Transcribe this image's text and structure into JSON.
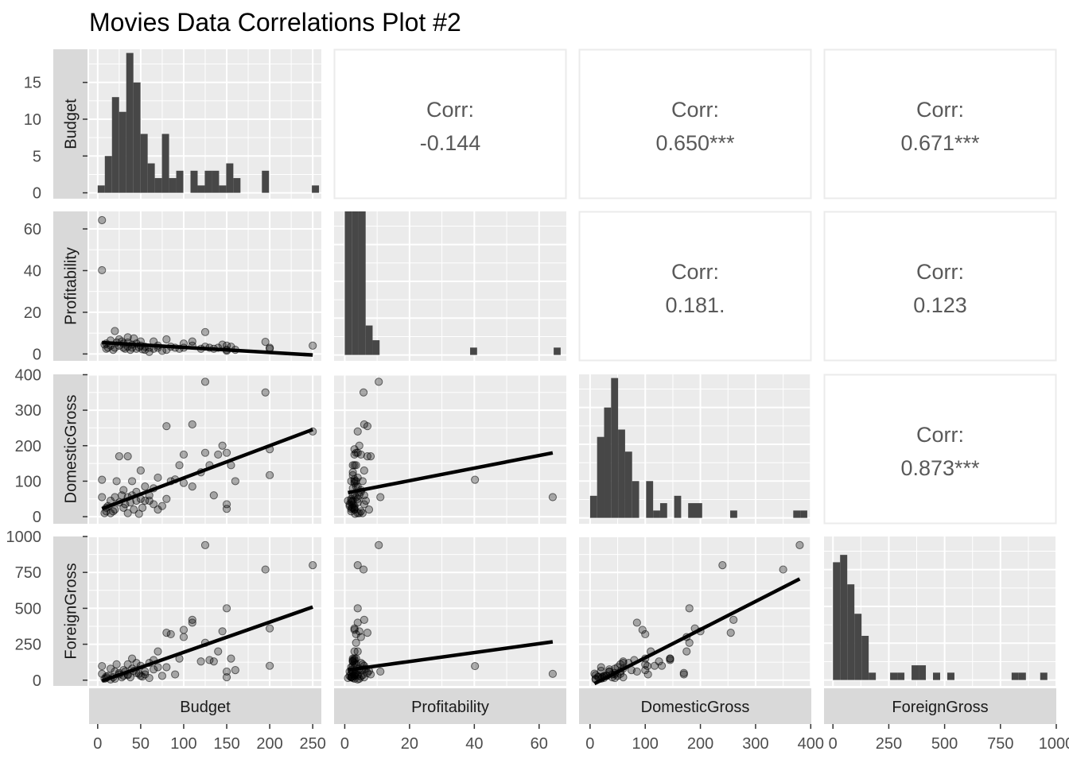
{
  "title": "Movies Data Correlations Plot #2",
  "colors": {
    "panel_bg": "#ebebeb",
    "grid_major": "#ffffff",
    "strip_bg": "#d9d9d9",
    "bars": "#474747",
    "points": "#000000",
    "fit_line": "#000000",
    "corr_text": "#595959",
    "corr_border": "#ebebeb"
  },
  "chart_data": {
    "type": "scatter",
    "variables": [
      "Budget",
      "Profitability",
      "DomesticGross",
      "ForeignGross"
    ],
    "axes": {
      "Budget": {
        "range": [
          -10,
          260
        ],
        "ticks": [
          0,
          50,
          100,
          150,
          200,
          250
        ]
      },
      "Profitability": {
        "range": [
          -3.3,
          68.4
        ],
        "ticks": [
          0,
          20,
          40,
          60
        ]
      },
      "DomesticGross": {
        "range": [
          -20,
          401
        ],
        "ticks": [
          0,
          100,
          200,
          300,
          400
        ]
      },
      "ForeignGross": {
        "range": [
          -40,
          1000
        ],
        "ticks": [
          0,
          250,
          500,
          750,
          1000
        ]
      }
    },
    "count_axis": {
      "range": [
        -0.8,
        19.5
      ],
      "ticks": [
        0,
        5,
        10,
        15
      ]
    },
    "correlations": [
      {
        "label": "Corr:",
        "value": "-0.144",
        "row": "Budget",
        "col": "Profitability"
      },
      {
        "label": "Corr:",
        "value": "0.650***",
        "row": "Budget",
        "col": "DomesticGross"
      },
      {
        "label": "Corr:",
        "value": "0.671***",
        "row": "Budget",
        "col": "ForeignGross"
      },
      {
        "label": "Corr:",
        "value": "0.181.",
        "row": "Profitability",
        "col": "DomesticGross"
      },
      {
        "label": "Corr:",
        "value": "0.123",
        "row": "Profitability",
        "col": "ForeignGross"
      },
      {
        "label": "Corr:",
        "value": "0.873***",
        "row": "DomesticGross",
        "col": "ForeignGross"
      }
    ],
    "histograms": {
      "Budget": {
        "start": 0,
        "binwidth": 8.3,
        "counts": [
          1,
          5,
          13,
          11,
          19,
          15,
          8,
          4,
          2,
          8,
          2,
          3,
          0,
          3,
          1,
          3,
          3,
          1,
          4,
          2,
          0,
          0,
          0,
          3,
          0,
          0,
          0,
          0,
          0,
          0,
          1
        ]
      },
      "Profitability": {
        "start": 0,
        "binwidth": 2.15,
        "counts": [
          30,
          65,
          27,
          4,
          2,
          0,
          0,
          0,
          0,
          0,
          0,
          0,
          0,
          0,
          0,
          0,
          0,
          0,
          1,
          0,
          0,
          0,
          0,
          0,
          0,
          0,
          0,
          0,
          0,
          0,
          1
        ]
      },
      "DomesticGross": {
        "start": 0,
        "binwidth": 12.7,
        "counts": [
          3,
          11,
          15,
          19,
          12,
          9,
          5,
          0,
          5,
          1,
          2,
          0,
          3,
          0,
          2,
          2,
          0,
          0,
          0,
          0,
          1,
          0,
          0,
          0,
          0,
          0,
          0,
          0,
          0,
          1,
          1
        ]
      },
      "ForeignGross": {
        "start": 0,
        "binwidth": 32,
        "counts": [
          16,
          17,
          13,
          9,
          6,
          1,
          0,
          0,
          1,
          1,
          0,
          2,
          2,
          0,
          1,
          0,
          1,
          0,
          0,
          0,
          0,
          0,
          0,
          0,
          0,
          1,
          1,
          0,
          0,
          1
        ]
      }
    },
    "fit_lines": {
      "Budget|Profitability": [
        5.6,
        -0.0244
      ],
      "Budget|DomesticGross": [
        18,
        0.91
      ],
      "Budget|ForeignGross": [
        -16,
        2.1
      ],
      "Profitability|DomesticGross": [
        66,
        1.77
      ],
      "Profitability|ForeignGross": [
        68,
        3.1
      ],
      "DomesticGross|ForeignGross": [
        -40,
        1.96
      ]
    },
    "movies": [
      {
        "b": 5,
        "p": 64.2,
        "d": 55,
        "f": 44
      },
      {
        "b": 5,
        "p": 40.2,
        "d": 104,
        "f": 98
      },
      {
        "b": 250,
        "p": 4,
        "d": 240,
        "f": 800
      },
      {
        "b": 200,
        "p": 3,
        "d": 190,
        "f": 360
      },
      {
        "b": 200,
        "p": 2.5,
        "d": 117,
        "f": 100
      },
      {
        "b": 195,
        "p": 5.8,
        "d": 350,
        "f": 770
      },
      {
        "b": 160,
        "p": 2,
        "d": 100,
        "f": 70
      },
      {
        "b": 155,
        "p": 3.5,
        "d": 145,
        "f": 150
      },
      {
        "b": 150,
        "p": 4,
        "d": 180,
        "f": 500
      },
      {
        "b": 150,
        "p": 1.5,
        "d": 35,
        "f": 60
      },
      {
        "b": 150,
        "p": 2,
        "d": 22,
        "f": 20
      },
      {
        "b": 145,
        "p": 4.5,
        "d": 200,
        "f": 340
      },
      {
        "b": 140,
        "p": 3,
        "d": 175,
        "f": 200
      },
      {
        "b": 135,
        "p": 2.5,
        "d": 60,
        "f": 130
      },
      {
        "b": 130,
        "p": 3,
        "d": 145,
        "f": 140
      },
      {
        "b": 125,
        "p": 10.5,
        "d": 380,
        "f": 940
      },
      {
        "b": 125,
        "p": 3.5,
        "d": 180,
        "f": 260
      },
      {
        "b": 120,
        "p": 2.5,
        "d": 125,
        "f": 130
      },
      {
        "b": 110,
        "p": 6,
        "d": 260,
        "f": 420
      },
      {
        "b": 110,
        "p": 4,
        "d": 85,
        "f": 400
      },
      {
        "b": 100,
        "p": 5,
        "d": 175,
        "f": 300
      },
      {
        "b": 100,
        "p": 3,
        "d": 95,
        "f": 350
      },
      {
        "b": 95,
        "p": 2.5,
        "d": 145,
        "f": 150
      },
      {
        "b": 90,
        "p": 3,
        "d": 105,
        "f": 40
      },
      {
        "b": 85,
        "p": 3.5,
        "d": 100,
        "f": 320
      },
      {
        "b": 80,
        "p": 7,
        "d": 255,
        "f": 330
      },
      {
        "b": 80,
        "p": 2,
        "d": 50,
        "f": 90
      },
      {
        "b": 75,
        "p": 1.5,
        "d": 30,
        "f": 30
      },
      {
        "b": 70,
        "p": 4,
        "d": 110,
        "f": 200
      },
      {
        "b": 70,
        "p": 3,
        "d": 20,
        "f": 90
      },
      {
        "b": 65,
        "p": 2.5,
        "d": 80,
        "f": 140
      },
      {
        "b": 60,
        "p": 3,
        "d": 60,
        "f": 120
      },
      {
        "b": 55,
        "p": 3.5,
        "d": 85,
        "f": 60
      },
      {
        "b": 55,
        "p": 2,
        "d": 45,
        "f": 40
      },
      {
        "b": 50,
        "p": 6,
        "d": 130,
        "f": 100
      },
      {
        "b": 50,
        "p": 4,
        "d": 50,
        "f": 30
      },
      {
        "b": 45,
        "p": 5,
        "d": 70,
        "f": 120
      },
      {
        "b": 45,
        "p": 2.5,
        "d": 45,
        "f": 50
      },
      {
        "b": 40,
        "p": 3,
        "d": 100,
        "f": 150
      },
      {
        "b": 40,
        "p": 4.5,
        "d": 60,
        "f": 80
      },
      {
        "b": 38,
        "p": 2,
        "d": 40,
        "f": 20
      },
      {
        "b": 35,
        "p": 8,
        "d": 170,
        "f": 40
      },
      {
        "b": 35,
        "p": 3.5,
        "d": 55,
        "f": 110
      },
      {
        "b": 32,
        "p": 2.5,
        "d": 35,
        "f": 60
      },
      {
        "b": 30,
        "p": 5,
        "d": 75,
        "f": 70
      },
      {
        "b": 30,
        "p": 3,
        "d": 25,
        "f": 30
      },
      {
        "b": 28,
        "p": 6,
        "d": 60,
        "f": 20
      },
      {
        "b": 25,
        "p": 7,
        "d": 170,
        "f": 50
      },
      {
        "b": 25,
        "p": 4,
        "d": 40,
        "f": 40
      },
      {
        "b": 22,
        "p": 5.5,
        "d": 100,
        "f": 110
      },
      {
        "b": 20,
        "p": 3,
        "d": 20,
        "f": 10
      },
      {
        "b": 20,
        "p": 11,
        "d": 55,
        "f": 60
      },
      {
        "b": 18,
        "p": 2,
        "d": 15,
        "f": 20
      },
      {
        "b": 15,
        "p": 6.5,
        "d": 45,
        "f": 80
      },
      {
        "b": 15,
        "p": 4,
        "d": 10,
        "f": 5
      },
      {
        "b": 12,
        "p": 3,
        "d": 30,
        "f": 30
      },
      {
        "b": 10,
        "p": 5,
        "d": 15,
        "f": 25
      },
      {
        "b": 10,
        "p": 2.5,
        "d": 25,
        "f": 15
      },
      {
        "b": 8,
        "p": 4.5,
        "d": 10,
        "f": 10
      },
      {
        "b": 60,
        "p": 1,
        "d": 45,
        "f": 15
      },
      {
        "b": 35,
        "p": 5.5,
        "d": 10,
        "f": 35
      },
      {
        "b": 42,
        "p": 7.5,
        "d": 20,
        "f": 65
      },
      {
        "b": 65,
        "p": 6,
        "d": 35,
        "f": 75
      },
      {
        "b": 52,
        "p": 2.2,
        "d": 25,
        "f": 25
      },
      {
        "b": 48,
        "p": 3.2,
        "d": 8,
        "f": 45
      }
    ]
  }
}
